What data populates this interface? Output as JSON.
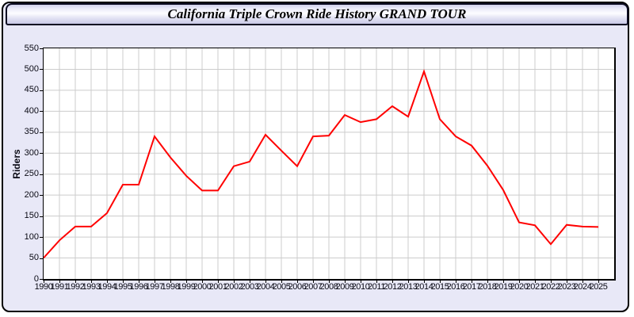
{
  "header": {
    "title": "California Triple Crown Ride History GRAND TOUR"
  },
  "chart_data": {
    "type": "line",
    "title": "California Triple Crown Ride History GRAND TOUR",
    "xlabel": "",
    "ylabel": "Riders",
    "ylim": [
      0,
      550
    ],
    "yticks": [
      550,
      500,
      450,
      400,
      350,
      300,
      250,
      200,
      150,
      100,
      50,
      0
    ],
    "grid": true,
    "legend_position": "none",
    "line_color": "#ff0000",
    "grid_color": "#cccccc",
    "plot_background": "#ffffff",
    "page_background": "#e8e8f7",
    "categories": [
      "1990",
      "1991",
      "1992",
      "1993",
      "1994",
      "1995",
      "1996",
      "1997",
      "1998",
      "1999",
      "2000",
      "2001",
      "2002",
      "2003",
      "2004",
      "2005",
      "2006",
      "2007",
      "2008",
      "2009",
      "2010",
      "2011",
      "2012",
      "2013",
      "2014",
      "2015",
      "2016",
      "2017",
      "2018",
      "2019",
      "2020",
      "2021",
      "2022",
      "2023",
      "2024",
      "2025"
    ],
    "series": [
      {
        "name": "Riders",
        "values": [
          50,
          92,
          125,
          125,
          157,
          225,
          225,
          340,
          290,
          246,
          211,
          211,
          269,
          280,
          344,
          306,
          269,
          340,
          342,
          391,
          374,
          381,
          412,
          387,
          495,
          381,
          340,
          318,
          270,
          212,
          135,
          128,
          83,
          129,
          125,
          124
        ]
      }
    ]
  }
}
